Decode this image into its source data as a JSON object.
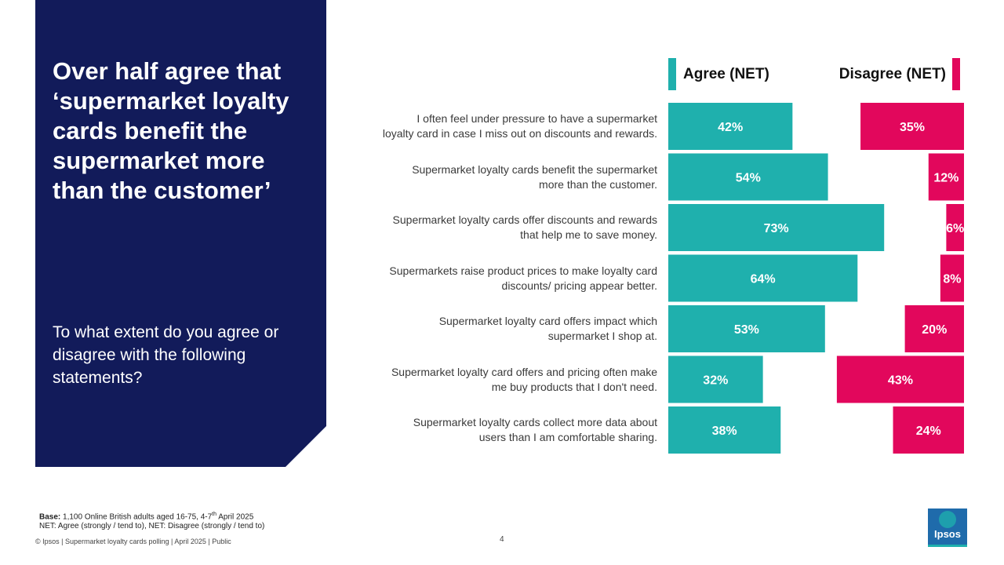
{
  "slide": {
    "headline": "Over half agree that ‘supermarket loyalty cards benefit the supermarket more than the customer’",
    "question": "To what extent do you agree or disagree with the following statements?"
  },
  "legend": {
    "agree": "Agree (NET)",
    "disagree": "Disagree (NET)"
  },
  "colors": {
    "agree": "#1fb0ad",
    "disagree": "#e2075c",
    "panel": "#121b5a"
  },
  "chart_data": {
    "type": "bar",
    "orientation": "horizontal",
    "categories": [
      "I often feel under pressure to have a supermarket loyalty card in case I miss out on discounts and rewards.",
      "Supermarket loyalty cards benefit the supermarket more than the customer.",
      "Supermarket loyalty cards offer discounts and rewards that help me to save money.",
      "Supermarkets raise product prices to make loyalty card discounts/ pricing appear better.",
      "Supermarket loyalty card offers impact which supermarket I shop at.",
      "Supermarket loyalty card offers and pricing often make me buy products that I don't need.",
      "Supermarket loyalty cards collect more data about users than I am comfortable sharing."
    ],
    "category_lines": [
      [
        "I often feel under pressure to have a supermarket",
        "loyalty card in case I miss out on discounts and rewards."
      ],
      [
        "Supermarket loyalty cards benefit the supermarket",
        "more than the customer."
      ],
      [
        "Supermarket loyalty cards offer discounts and rewards",
        "that help me to save money."
      ],
      [
        "Supermarkets raise product prices to make loyalty card",
        "discounts/ pricing appear better."
      ],
      [
        "Supermarket loyalty card offers impact which",
        "supermarket I shop at."
      ],
      [
        "Supermarket loyalty card offers and pricing often make",
        "me buy products that I don't need."
      ],
      [
        "Supermarket loyalty cards collect more data about",
        "users than I am comfortable sharing."
      ]
    ],
    "series": [
      {
        "name": "Agree (NET)",
        "values": [
          42,
          54,
          73,
          64,
          53,
          32,
          38
        ]
      },
      {
        "name": "Disagree (NET)",
        "values": [
          35,
          12,
          6,
          8,
          20,
          43,
          24
        ]
      }
    ],
    "value_suffix": "%"
  },
  "footnote": {
    "base_label": "Base:",
    "base_text": " 1,100 Online British adults aged 16-75, 4-7",
    "base_sup": "th",
    "base_tail": " April 2025",
    "net_text": "NET: Agree (strongly / tend to), NET: Disagree (strongly / tend to)"
  },
  "footer": {
    "text": "© Ipsos | Supermarket loyalty cards polling | April 2025 | Public",
    "page": "4"
  },
  "logo": {
    "text": "Ipsos"
  }
}
